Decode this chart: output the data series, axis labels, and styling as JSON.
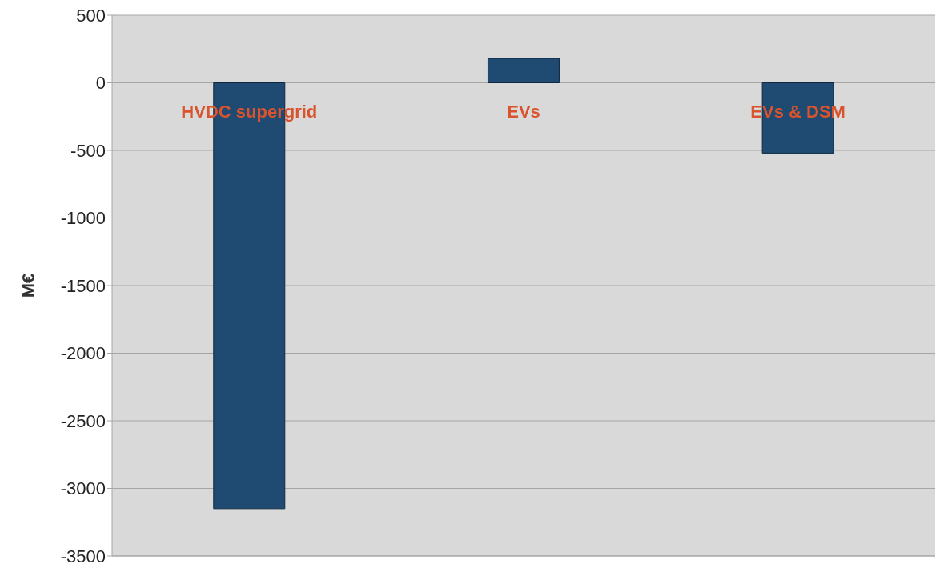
{
  "chart_data": {
    "type": "bar",
    "ylabel": "M€",
    "categories": [
      "HVDC supergrid",
      "EVs",
      "EVs & DSM"
    ],
    "values": [
      -3150,
      180,
      -520
    ],
    "color": "#1f4a72",
    "ylim": [
      -3500,
      500
    ],
    "yticks": [
      -3500,
      -3000,
      -2500,
      -2000,
      -1500,
      -1000,
      -500,
      0,
      500
    ],
    "grid": "y"
  }
}
